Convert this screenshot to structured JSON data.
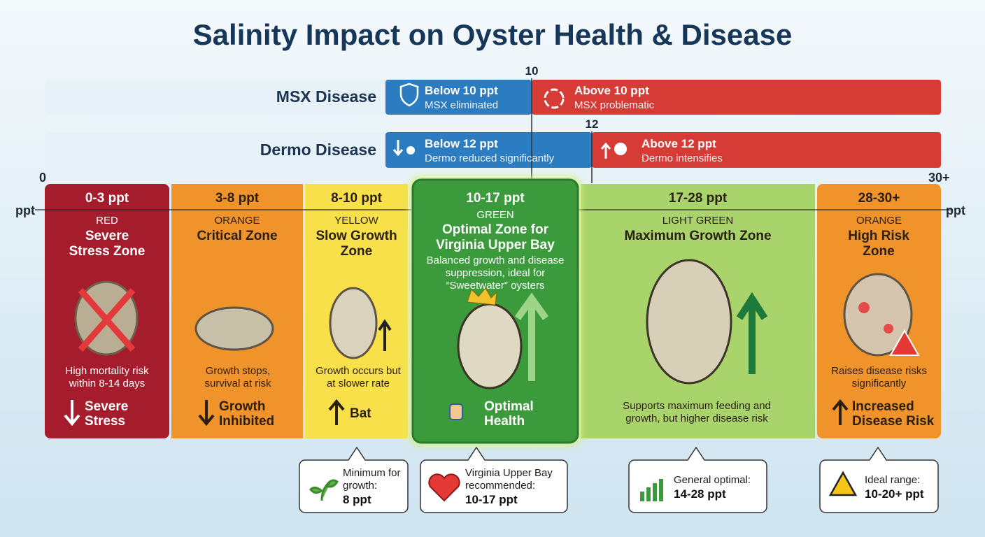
{
  "title": "Salinity Impact on Oyster Health & Disease",
  "scale": {
    "start": "0",
    "end": "30+",
    "unit": "ppt"
  },
  "diseases": [
    {
      "name": "MSX Disease",
      "threshold": "10",
      "low": {
        "title": "Below 10 ppt",
        "text": "MSX eliminated"
      },
      "high": {
        "title": "Above 10 ppt",
        "text": "MSX problematic"
      }
    },
    {
      "name": "Dermo Disease",
      "threshold": "12",
      "low": {
        "title": "Below 12 ppt",
        "text": "Dermo reduced significantly"
      },
      "high": {
        "title": "Above 12 ppt",
        "text": "Dermo intensifies"
      }
    }
  ],
  "zones": [
    {
      "range": "0-3 ppt",
      "level": "RED",
      "name": "Severe Stress Zone",
      "description": "High mortality risk within 8-14 days",
      "effect": "Severe Stress"
    },
    {
      "range": "3-8 ppt",
      "level": "ORANGE",
      "name": "Critical Zone",
      "description": "Growth stops, survival at risk",
      "effect": "Growth Inhibited"
    },
    {
      "range": "8-10 ppt",
      "level": "YELLOW",
      "name": "Slow Growth Zone",
      "description": "Growth occurs but at slower rate",
      "effect": "Bat"
    },
    {
      "range": "10-17 ppt",
      "level": "GREEN",
      "name": "Optimal Zone for Virginia Upper Bay",
      "description": "Balanced growth and disease suppression, ideal for “Sweetwater” oysters",
      "effect": "Optimal Health"
    },
    {
      "range": "17-28 ppt",
      "level": "LIGHT GREEN",
      "name": "Maximum Growth Zone",
      "description": "Supports maximum feeding and growth, but higher disease risk"
    },
    {
      "range": "28-30+",
      "level": "ORANGE",
      "name": "High Risk Zone",
      "description": "Raises disease risks significantly",
      "effect": "Increased Disease Risk"
    }
  ],
  "callouts": [
    {
      "text": "Minimum for growth:",
      "value": "8 ppt"
    },
    {
      "text": "Virginia Upper Bay recommended:",
      "value": "10-17 ppt"
    },
    {
      "text": "General optimal:",
      "value": "14-28 ppt"
    },
    {
      "text": "Ideal range:",
      "value": "10-20+ ppt"
    }
  ]
}
